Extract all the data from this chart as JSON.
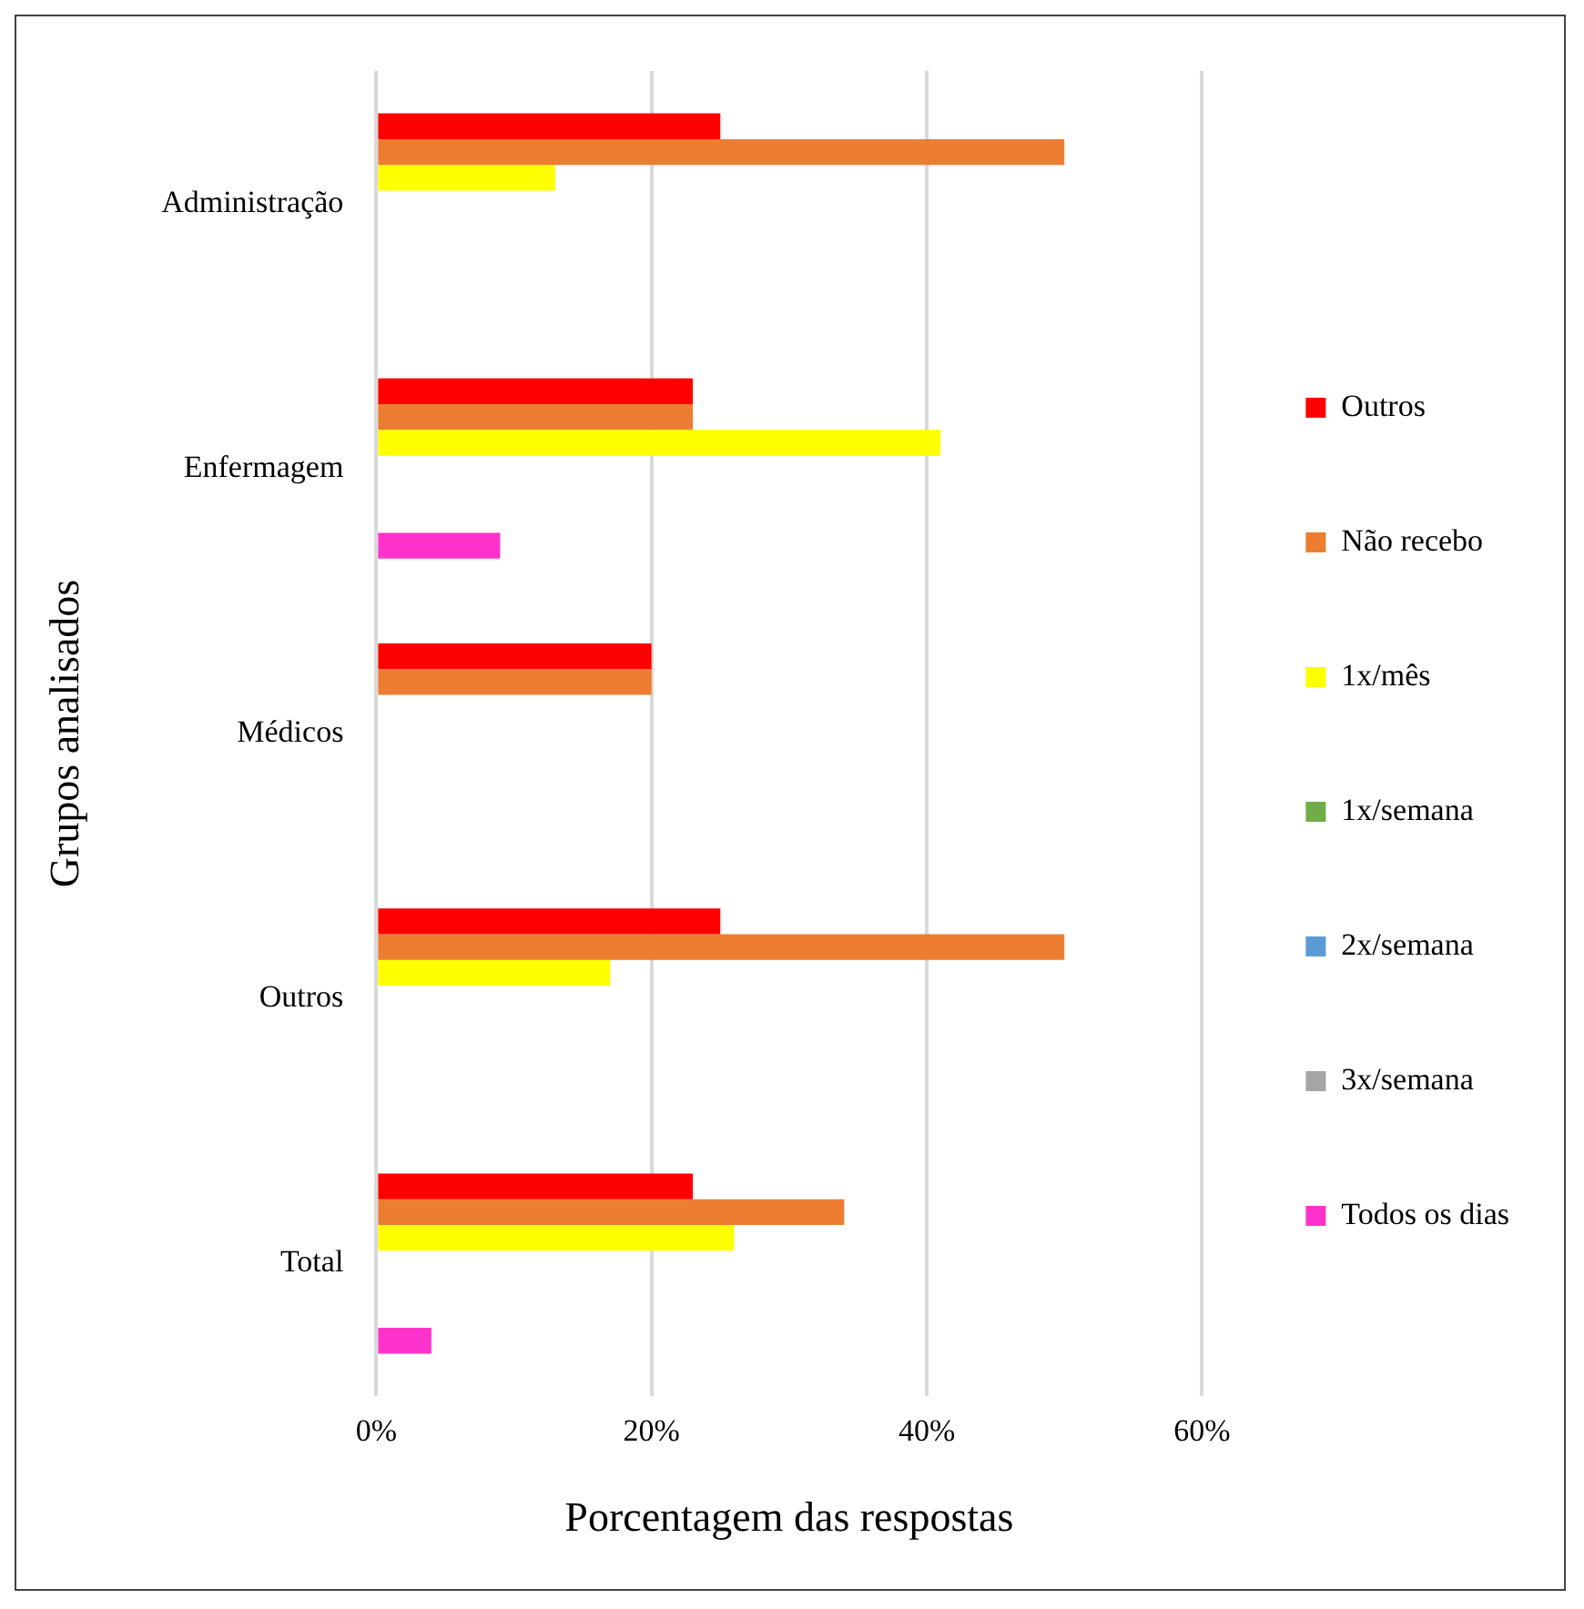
{
  "chart_data": {
    "type": "bar",
    "orientation": "horizontal",
    "xlabel": "Porcentagem das respostas",
    "ylabel": "Grupos analisados",
    "categories": [
      "Administração",
      "Enfermagem",
      "Médicos",
      "Outros",
      "Total"
    ],
    "series": [
      {
        "name": "Outros",
        "color": "#ff0000",
        "values": [
          25,
          23,
          20,
          25,
          23
        ]
      },
      {
        "name": "Não recebo",
        "color": "#ed7d31",
        "values": [
          50,
          23,
          20,
          50,
          34
        ]
      },
      {
        "name": "1x/mês",
        "color": "#ffff00",
        "values": [
          13,
          41,
          0,
          17,
          26
        ]
      },
      {
        "name": "1x/semana",
        "color": "#70ad47",
        "values": [
          0,
          0,
          0,
          0,
          0
        ]
      },
      {
        "name": "2x/semana",
        "color": "#5b9bd5",
        "values": [
          0,
          0,
          0,
          0,
          0
        ]
      },
      {
        "name": "3x/semana",
        "color": "#a5a5a5",
        "values": [
          0,
          0,
          0,
          0,
          0
        ]
      },
      {
        "name": "Todos os dias",
        "color": "#ff33cc",
        "values": [
          0,
          9,
          0,
          0,
          4
        ]
      }
    ],
    "xlim": [
      0,
      60
    ],
    "xticks": [
      {
        "value": 0,
        "label": "0%"
      },
      {
        "value": 20,
        "label": "20%"
      },
      {
        "value": 40,
        "label": "40%"
      },
      {
        "value": 60,
        "label": "60%"
      }
    ],
    "grid": "x",
    "legend": "right"
  }
}
